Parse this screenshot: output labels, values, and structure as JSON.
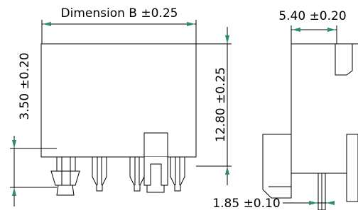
{
  "dimensions": {
    "width_front": "Dimension B ±0.25",
    "width_side": "5.40 ±0.20",
    "pin_length": "3.50 ±0.20",
    "height": "12.80 ±0.25",
    "pin_offset": "1.85 ±0.10"
  }
}
